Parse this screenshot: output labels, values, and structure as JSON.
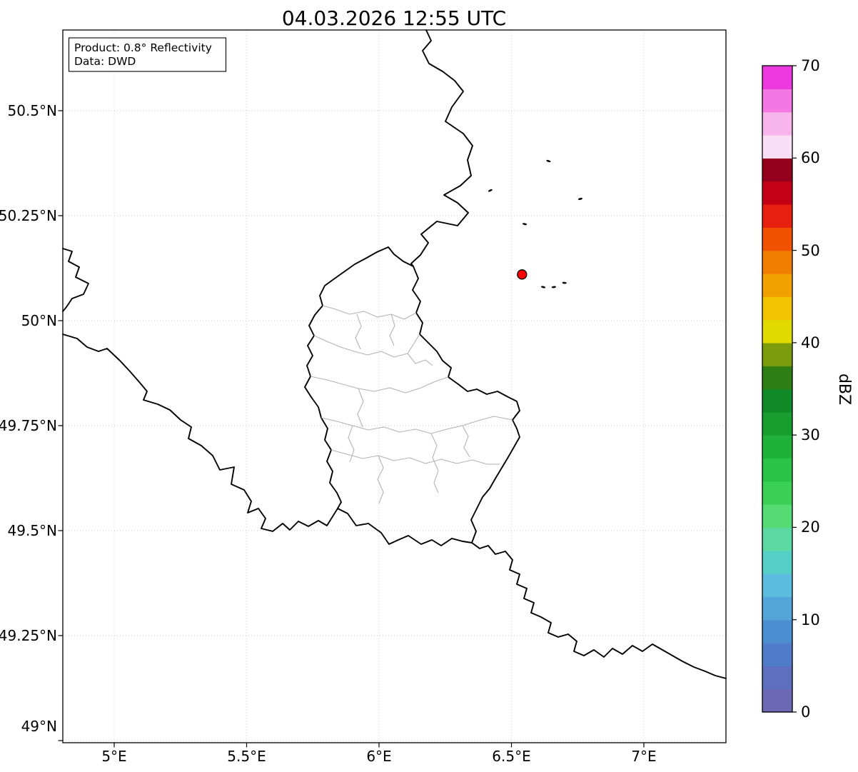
{
  "title": "04.03.2026 12:55 UTC",
  "info_box": {
    "line1": "Product: 0.8° Reflectivity",
    "line2": "Data: DWD"
  },
  "axes": {
    "x_ticks": [
      {
        "label": "5°E",
        "lon": 5.0
      },
      {
        "label": "5.5°E",
        "lon": 5.5
      },
      {
        "label": "6°E",
        "lon": 6.0
      },
      {
        "label": "6.5°E",
        "lon": 6.5
      },
      {
        "label": "7°E",
        "lon": 7.0
      }
    ],
    "y_ticks": [
      {
        "label": "50.5°N",
        "lat": 50.5
      },
      {
        "label": "50.25°N",
        "lat": 50.25
      },
      {
        "label": "50°N",
        "lat": 50.0
      },
      {
        "label": "49.75°N",
        "lat": 49.75
      },
      {
        "label": "49.5°N",
        "lat": 49.5
      },
      {
        "label": "49.25°N",
        "lat": 49.25
      },
      {
        "label": "49°N",
        "lat": 49.0
      }
    ],
    "lon_range": [
      4.81,
      7.31
    ],
    "lat_range": [
      49.0,
      50.69
    ]
  },
  "colorbar": {
    "label": "dBZ",
    "min": 0,
    "max": 70,
    "step": 2.5,
    "tick_values": [
      0,
      10,
      20,
      30,
      40,
      50,
      60,
      70
    ],
    "colors_bottom_to_top": [
      "#6c68b3",
      "#5e6fc0",
      "#507cc9",
      "#4b8ed2",
      "#53a5da",
      "#5cbcdd",
      "#56cfc6",
      "#5cd9a3",
      "#55db74",
      "#3ccf57",
      "#2bc247",
      "#1fb13a",
      "#179e2f",
      "#0f8a26",
      "#2f7e14",
      "#7d9c0d",
      "#e0da00",
      "#f2c300",
      "#f2a200",
      "#f07e00",
      "#f25200",
      "#e81e0e",
      "#c40016",
      "#94001b",
      "#fadef5",
      "#f8b5ec",
      "#f478e4",
      "#ec3adf"
    ]
  },
  "map": {
    "marker": {
      "lon": 6.54,
      "lat": 50.11,
      "fill": "#ff0000",
      "edge": "#000000"
    },
    "echoes": [
      {
        "lon": 6.64,
        "lat": 50.38
      },
      {
        "lon": 6.76,
        "lat": 50.29
      },
      {
        "lon": 6.55,
        "lat": 50.23
      },
      {
        "lon": 6.42,
        "lat": 50.31
      },
      {
        "lon": 6.62,
        "lat": 50.08
      },
      {
        "lon": 6.66,
        "lat": 50.08
      },
      {
        "lon": 6.7,
        "lat": 50.09
      }
    ]
  }
}
